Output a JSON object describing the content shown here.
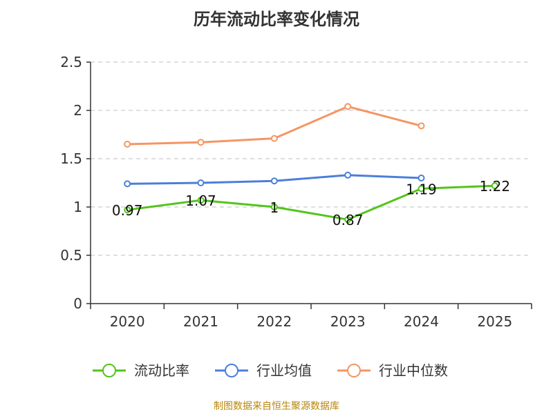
{
  "chart_data": {
    "type": "line",
    "title": "历年流动比率变化情况",
    "categories": [
      "2020",
      "2021",
      "2022",
      "2023",
      "2024",
      "2025"
    ],
    "ylim": [
      0,
      2.5
    ],
    "yticks": [
      "0",
      "0.5",
      "1",
      "1.5",
      "2",
      "2.5"
    ],
    "grid": true,
    "legend_position": "bottom",
    "series": [
      {
        "name": "流动比率",
        "color": "#52c41a",
        "values": [
          0.97,
          1.07,
          1.0,
          0.87,
          1.19,
          1.22
        ],
        "labels": [
          "0.97",
          "1.07",
          "1",
          "0.87",
          "1.19",
          "1.22"
        ]
      },
      {
        "name": "行业均值",
        "color": "#4a7fd9",
        "values": [
          1.24,
          1.25,
          1.27,
          1.33,
          1.3,
          null
        ]
      },
      {
        "name": "行业中位数",
        "color": "#f59562",
        "values": [
          1.65,
          1.67,
          1.71,
          2.04,
          1.84,
          null
        ]
      }
    ]
  },
  "footer": {
    "source": "制图数据来自恒生聚源数据库"
  }
}
